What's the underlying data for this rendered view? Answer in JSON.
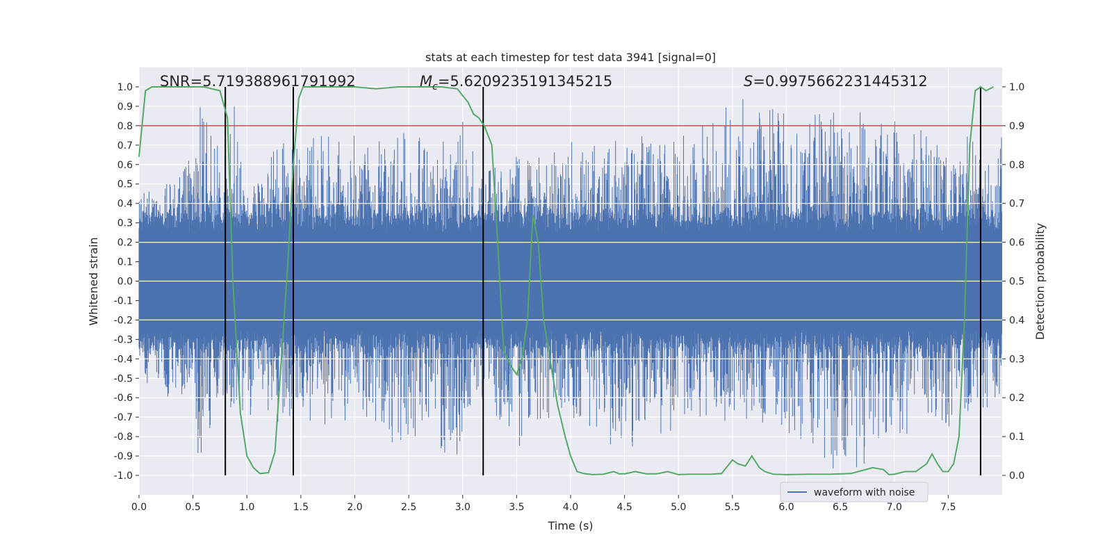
{
  "chart_data": {
    "type": "line",
    "title": "stats at each timestep for test data 3941 [signal=0]",
    "xlabel": "Time (s)",
    "ylabel": "Whitened strain",
    "y2label": "Detection probability",
    "xlim": [
      0.0,
      8.0
    ],
    "ylim": [
      -1.1,
      1.1
    ],
    "y2lim": [
      -0.05,
      1.05
    ],
    "xticks": [
      0.0,
      0.5,
      1.0,
      1.5,
      2.0,
      2.5,
      3.0,
      3.5,
      4.0,
      4.5,
      5.0,
      5.5,
      6.0,
      6.5,
      7.0,
      7.5
    ],
    "xtick_labels": [
      "0.0",
      "0.5",
      "1.0",
      "1.5",
      "2.0",
      "2.5",
      "3.0",
      "3.5",
      "4.0",
      "4.5",
      "5.0",
      "5.5",
      "6.0",
      "6.5",
      "7.0",
      "7.5"
    ],
    "yticks": [
      1.0,
      0.9,
      0.8,
      0.7,
      0.6,
      0.5,
      0.4,
      0.3,
      0.2,
      0.1,
      0.0,
      -0.1,
      -0.2,
      -0.3,
      -0.4,
      -0.5,
      -0.6,
      -0.7,
      -0.8,
      -0.9,
      -1.0
    ],
    "ytick_labels": [
      "1.0",
      "0.9",
      "0.8",
      "0.7",
      "0.6",
      "0.5",
      "0.4",
      "0.3",
      "0.2",
      "0.1",
      "0.0",
      "-0.1",
      "-0.2",
      "-0.3",
      "-0.4",
      "-0.5",
      "-0.6",
      "-0.7",
      "-0.8",
      "-0.9",
      "-1.0"
    ],
    "y2ticks": [
      1.0,
      0.9,
      0.8,
      0.7,
      0.6,
      0.5,
      0.4,
      0.3,
      0.2,
      0.1,
      0.0
    ],
    "y2tick_labels": [
      "1.0",
      "0.9",
      "0.8",
      "0.7",
      "0.6",
      "0.5",
      "0.4",
      "0.3",
      "0.2",
      "0.1",
      "0.0"
    ],
    "annotations": {
      "snr": "SNR=5.719388961791992",
      "mc_symbol": "M",
      "mc_sub": "c",
      "mc_value": "=5.6209235191345215",
      "s_symbol": "S",
      "s_value": "=0.9975662231445312"
    },
    "threshold": 0.9,
    "vlines": [
      0.8,
      1.43,
      3.19,
      7.8
    ],
    "vline_ymin": -0.05,
    "vline_ymax": 1.0,
    "legend": {
      "label": "waveform with noise",
      "location": "lower-right"
    },
    "series": [
      {
        "name": "waveform with noise",
        "axis": "left",
        "style": "noise",
        "envelope": {
          "x": [
            0.0,
            0.5,
            0.55,
            0.8,
            0.85,
            1.0,
            1.5,
            2.0,
            2.5,
            3.0,
            3.2,
            3.5,
            4.0,
            4.5,
            5.0,
            5.5,
            6.0,
            6.5,
            7.0,
            7.5,
            8.0
          ],
          "upper": [
            0.42,
            0.6,
            0.97,
            0.55,
            0.95,
            0.6,
            0.72,
            0.74,
            0.72,
            0.78,
            0.62,
            0.66,
            0.68,
            0.72,
            0.72,
            0.95,
            0.84,
            0.86,
            0.84,
            0.74,
            0.74
          ],
          "lower": [
            -0.5,
            -0.62,
            -0.88,
            -0.6,
            -0.75,
            -0.72,
            -0.7,
            -0.72,
            -0.82,
            -0.88,
            -0.62,
            -0.84,
            -0.68,
            -0.9,
            -0.72,
            -0.72,
            -0.74,
            -0.98,
            -0.82,
            -0.72,
            -0.6
          ]
        }
      },
      {
        "name": "detection probability",
        "axis": "right",
        "color": "#55a868",
        "x": [
          0.0,
          0.06,
          0.12,
          0.2,
          0.4,
          0.6,
          0.75,
          0.82,
          0.87,
          0.94,
          1.0,
          1.06,
          1.12,
          1.2,
          1.26,
          1.32,
          1.38,
          1.43,
          1.48,
          1.52,
          1.58,
          1.8,
          2.0,
          2.2,
          2.4,
          2.6,
          2.8,
          2.95,
          3.05,
          3.1,
          3.15,
          3.2,
          3.27,
          3.32,
          3.38,
          3.45,
          3.5,
          3.55,
          3.6,
          3.65,
          3.7,
          3.75,
          3.82,
          3.88,
          3.95,
          4.0,
          4.06,
          4.12,
          4.2,
          4.3,
          4.4,
          4.45,
          4.5,
          4.6,
          4.7,
          4.8,
          4.9,
          5.0,
          5.1,
          5.2,
          5.3,
          5.4,
          5.5,
          5.55,
          5.62,
          5.68,
          5.75,
          5.8,
          5.88,
          6.0,
          6.2,
          6.4,
          6.6,
          6.8,
          6.9,
          6.95,
          7.0,
          7.1,
          7.2,
          7.3,
          7.35,
          7.4,
          7.45,
          7.5,
          7.55,
          7.6,
          7.65,
          7.7,
          7.75,
          7.8,
          7.85,
          7.92
        ],
        "y": [
          0.82,
          0.99,
          1.0,
          1.0,
          1.0,
          1.0,
          0.99,
          0.92,
          0.5,
          0.16,
          0.05,
          0.02,
          0.005,
          0.007,
          0.06,
          0.3,
          0.55,
          0.8,
          0.97,
          1.0,
          1.0,
          1.0,
          1.0,
          0.995,
          1.0,
          1.0,
          1.0,
          0.995,
          0.96,
          0.93,
          0.92,
          0.9,
          0.85,
          0.62,
          0.32,
          0.28,
          0.26,
          0.3,
          0.4,
          0.67,
          0.6,
          0.4,
          0.28,
          0.18,
          0.1,
          0.05,
          0.01,
          0.005,
          0.002,
          0.003,
          0.01,
          0.004,
          0.004,
          0.01,
          0.004,
          0.004,
          0.01,
          0.002,
          0.003,
          0.003,
          0.003,
          0.005,
          0.04,
          0.03,
          0.024,
          0.05,
          0.02,
          0.01,
          0.003,
          0.002,
          0.003,
          0.003,
          0.005,
          0.02,
          0.015,
          0.002,
          0.003,
          0.01,
          0.01,
          0.03,
          0.055,
          0.03,
          0.01,
          0.01,
          0.03,
          0.1,
          0.4,
          0.85,
          0.99,
          1.0,
          0.99,
          1.0
        ]
      },
      {
        "name": "threshold",
        "axis": "right",
        "color": "#c44e52",
        "value": 0.9
      }
    ]
  }
}
